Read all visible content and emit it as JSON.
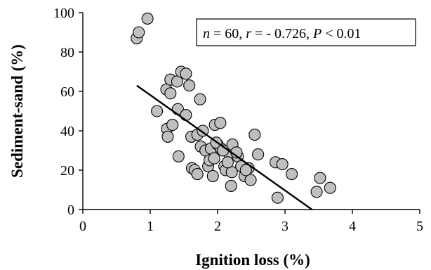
{
  "chart_data": {
    "type": "scatter",
    "title": "",
    "xlabel": "Ignition loss (%)",
    "ylabel": "Sediment-sand (%)",
    "xlim": [
      0,
      5
    ],
    "ylim": [
      0,
      100
    ],
    "xticks": [
      "0",
      "1",
      "2",
      "3",
      "4",
      "5"
    ],
    "yticks": [
      "0",
      "20",
      "40",
      "60",
      "80",
      "100"
    ],
    "grid": false,
    "annotation": {
      "n_symbol": "n",
      "n_value": " = 60, ",
      "r_symbol": "r",
      "r_value": " = - 0.726, ",
      "p_symbol": "P",
      "p_value": " < 0.01"
    },
    "fit_line": {
      "x": [
        0.8,
        3.4
      ],
      "y": [
        63,
        0
      ]
    },
    "points": [
      {
        "x": 0.8,
        "y": 87
      },
      {
        "x": 0.83,
        "y": 90
      },
      {
        "x": 0.96,
        "y": 97
      },
      {
        "x": 1.1,
        "y": 50
      },
      {
        "x": 1.24,
        "y": 61
      },
      {
        "x": 1.25,
        "y": 41
      },
      {
        "x": 1.26,
        "y": 37
      },
      {
        "x": 1.3,
        "y": 66
      },
      {
        "x": 1.3,
        "y": 59
      },
      {
        "x": 1.33,
        "y": 43
      },
      {
        "x": 1.4,
        "y": 65
      },
      {
        "x": 1.41,
        "y": 51
      },
      {
        "x": 1.42,
        "y": 27
      },
      {
        "x": 1.46,
        "y": 70
      },
      {
        "x": 1.53,
        "y": 69
      },
      {
        "x": 1.53,
        "y": 48
      },
      {
        "x": 1.58,
        "y": 63
      },
      {
        "x": 1.61,
        "y": 37
      },
      {
        "x": 1.62,
        "y": 21
      },
      {
        "x": 1.66,
        "y": 20
      },
      {
        "x": 1.7,
        "y": 18
      },
      {
        "x": 1.7,
        "y": 38
      },
      {
        "x": 1.74,
        "y": 56
      },
      {
        "x": 1.75,
        "y": 32
      },
      {
        "x": 1.82,
        "y": 30
      },
      {
        "x": 1.86,
        "y": 22
      },
      {
        "x": 1.88,
        "y": 25
      },
      {
        "x": 1.9,
        "y": 31
      },
      {
        "x": 1.93,
        "y": 17
      },
      {
        "x": 1.95,
        "y": 26
      },
      {
        "x": 1.96,
        "y": 43
      },
      {
        "x": 2.0,
        "y": 33
      },
      {
        "x": 2.04,
        "y": 44
      },
      {
        "x": 2.05,
        "y": 31
      },
      {
        "x": 2.1,
        "y": 22
      },
      {
        "x": 2.12,
        "y": 20
      },
      {
        "x": 2.18,
        "y": 28
      },
      {
        "x": 2.2,
        "y": 12
      },
      {
        "x": 2.21,
        "y": 19
      },
      {
        "x": 2.22,
        "y": 33
      },
      {
        "x": 2.3,
        "y": 27
      },
      {
        "x": 2.35,
        "y": 22
      },
      {
        "x": 2.4,
        "y": 17
      },
      {
        "x": 2.46,
        "y": 21
      },
      {
        "x": 2.49,
        "y": 15
      },
      {
        "x": 2.55,
        "y": 38
      },
      {
        "x": 2.6,
        "y": 28
      },
      {
        "x": 2.86,
        "y": 24
      },
      {
        "x": 2.89,
        "y": 6
      },
      {
        "x": 2.96,
        "y": 23
      },
      {
        "x": 3.1,
        "y": 18
      },
      {
        "x": 3.47,
        "y": 9
      },
      {
        "x": 3.52,
        "y": 16
      },
      {
        "x": 3.67,
        "y": 11
      },
      {
        "x": 1.98,
        "y": 34
      },
      {
        "x": 2.08,
        "y": 30
      },
      {
        "x": 2.15,
        "y": 24
      },
      {
        "x": 1.78,
        "y": 40
      },
      {
        "x": 2.28,
        "y": 29
      },
      {
        "x": 2.42,
        "y": 20
      }
    ]
  }
}
